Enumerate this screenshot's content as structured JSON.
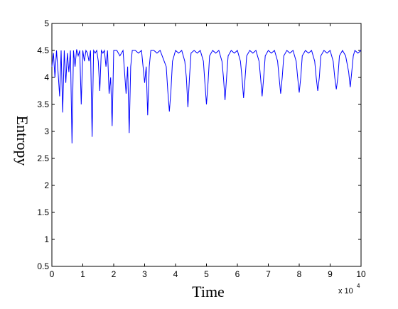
{
  "chart_data": {
    "type": "line",
    "title": "",
    "xlabel": "Time",
    "ylabel": "Entropy",
    "x_multiplier_label": "x 10",
    "x_multiplier_exponent": "4",
    "xlim": [
      0,
      10
    ],
    "ylim": [
      0.5,
      5
    ],
    "x_ticks": [
      0,
      1,
      2,
      3,
      4,
      5,
      6,
      7,
      8,
      9,
      10
    ],
    "y_ticks": [
      0.5,
      1,
      1.5,
      2,
      2.5,
      3,
      3.5,
      4,
      4.5,
      5
    ],
    "grid": false,
    "line_color": "#0000ff",
    "series": [
      {
        "x": [
          0,
          0.05,
          0.1,
          0.15,
          0.2,
          0.25,
          0.3,
          0.35,
          0.4,
          0.45,
          0.5,
          0.55,
          0.6,
          0.65,
          0.7,
          0.75,
          0.8,
          0.85,
          0.9,
          0.95,
          1.0,
          1.05,
          1.1,
          1.15,
          1.2,
          1.25,
          1.3,
          1.35,
          1.4,
          1.45,
          1.5,
          1.55,
          1.6,
          1.65,
          1.7,
          1.75,
          1.8,
          1.85,
          1.9,
          1.95,
          2.0,
          2.1,
          2.2,
          2.3,
          2.4,
          2.45,
          2.5,
          2.55,
          2.6,
          2.7,
          2.8,
          2.9,
          3.0,
          3.05,
          3.1,
          3.15,
          3.2,
          3.3,
          3.4,
          3.5,
          3.6,
          3.7,
          3.75,
          3.8,
          3.85,
          3.9,
          4.0,
          4.1,
          4.2,
          4.3,
          4.35,
          4.4,
          4.45,
          4.5,
          4.6,
          4.7,
          4.8,
          4.9,
          4.95,
          5.0,
          5.05,
          5.1,
          5.2,
          5.3,
          5.4,
          5.5,
          5.55,
          5.6,
          5.65,
          5.7,
          5.8,
          5.9,
          6.0,
          6.1,
          6.15,
          6.2,
          6.25,
          6.3,
          6.4,
          6.5,
          6.6,
          6.7,
          6.75,
          6.8,
          6.85,
          6.9,
          7.0,
          7.1,
          7.2,
          7.3,
          7.35,
          7.4,
          7.45,
          7.5,
          7.6,
          7.7,
          7.8,
          7.9,
          7.95,
          8.0,
          8.05,
          8.1,
          8.2,
          8.3,
          8.4,
          8.5,
          8.55,
          8.6,
          8.65,
          8.7,
          8.8,
          8.9,
          9.0,
          9.1,
          9.15,
          9.2,
          9.25,
          9.3,
          9.4,
          9.5,
          9.6,
          9.65,
          9.7,
          9.75,
          9.8,
          9.9,
          10.0
        ],
        "y": [
          4.2,
          4.45,
          4.0,
          4.5,
          4.1,
          3.65,
          4.5,
          3.35,
          4.5,
          3.9,
          4.45,
          4.1,
          4.5,
          2.78,
          4.5,
          4.2,
          4.52,
          4.4,
          4.5,
          3.5,
          4.5,
          4.3,
          4.5,
          4.45,
          4.3,
          4.5,
          2.9,
          4.5,
          4.45,
          4.5,
          4.3,
          3.75,
          4.5,
          4.45,
          4.5,
          4.2,
          4.5,
          3.7,
          4.0,
          3.1,
          4.5,
          4.5,
          4.4,
          4.5,
          3.7,
          4.2,
          2.97,
          4.2,
          4.5,
          4.5,
          4.45,
          4.5,
          3.9,
          4.2,
          3.3,
          4.2,
          4.5,
          4.5,
          4.45,
          4.5,
          4.35,
          4.2,
          3.75,
          3.37,
          3.75,
          4.3,
          4.5,
          4.45,
          4.5,
          4.3,
          4.0,
          3.45,
          4.0,
          4.45,
          4.5,
          4.45,
          4.5,
          4.3,
          3.9,
          3.5,
          3.9,
          4.4,
          4.5,
          4.45,
          4.5,
          4.3,
          4.0,
          3.58,
          4.0,
          4.4,
          4.5,
          4.45,
          4.5,
          4.3,
          4.0,
          3.62,
          4.0,
          4.4,
          4.5,
          4.45,
          4.5,
          4.3,
          4.0,
          3.65,
          4.0,
          4.4,
          4.5,
          4.45,
          4.5,
          4.3,
          4.0,
          3.7,
          4.0,
          4.4,
          4.5,
          4.45,
          4.5,
          4.3,
          4.0,
          3.72,
          4.0,
          4.4,
          4.5,
          4.45,
          4.5,
          4.3,
          4.0,
          3.75,
          4.0,
          4.4,
          4.5,
          4.45,
          4.5,
          4.3,
          4.0,
          3.78,
          4.0,
          4.4,
          4.5,
          4.4,
          4.1,
          3.82,
          4.1,
          4.4,
          4.5,
          4.45,
          4.5
        ]
      }
    ]
  }
}
